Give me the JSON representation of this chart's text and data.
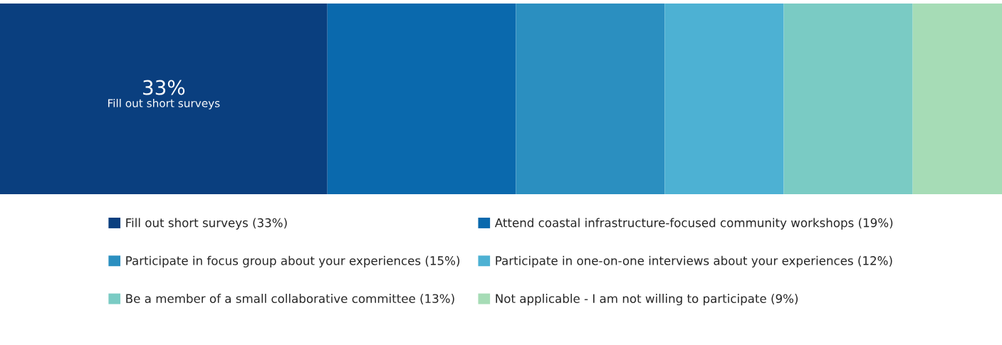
{
  "chart_data": {
    "type": "bar",
    "orientation": "horizontal",
    "stacked": true,
    "categories": [
      null
    ],
    "xlim": [
      0,
      101
    ],
    "grid": false,
    "legend": "bottom",
    "series": [
      {
        "name": "Fill out short surveys (33%)",
        "color": "#0a3f7f",
        "values": [
          33
        ],
        "value_labels": [
          "33%"
        ]
      },
      {
        "name": "Attend coastal infrastructure-focused community workshops (19%)",
        "color": "#0a69ad",
        "values": [
          19
        ]
      },
      {
        "name": "Participate in focus group about your experiences (15%)",
        "color": "#2b8fc0",
        "values": [
          15
        ]
      },
      {
        "name": "Participate in one-on-one interviews about your experiences (12%)",
        "color": "#4db1d3",
        "values": [
          12
        ]
      },
      {
        "name": "Be a member of a small collaborative committee (13%)",
        "color": "#7acbc4",
        "values": [
          13
        ]
      },
      {
        "name": "Not applicable - I am not willing to participate (9%)",
        "color": "#a6dcb6",
        "values": [
          9
        ]
      }
    ],
    "annotations": [
      "Fill out short surveys"
    ]
  }
}
